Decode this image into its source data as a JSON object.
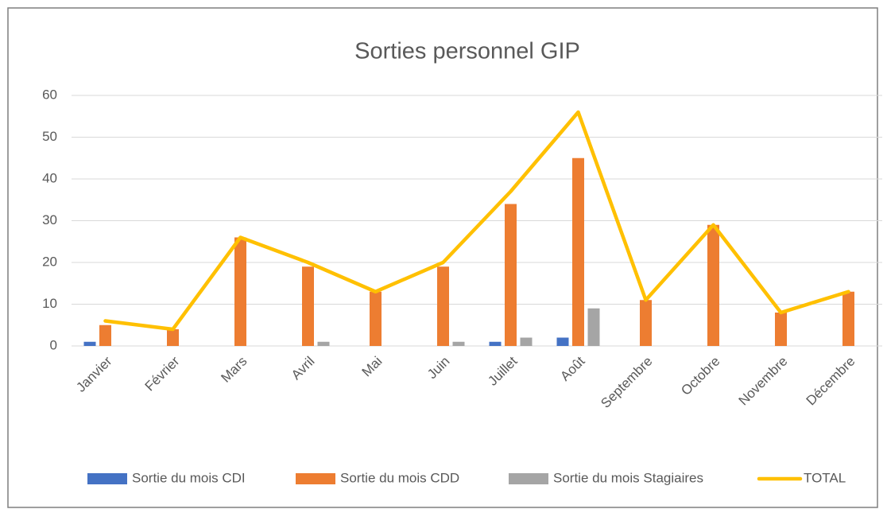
{
  "chart_data": {
    "type": "bar_line",
    "title": "Sorties personnel GIP",
    "categories": [
      "Janvier",
      "Février",
      "Mars",
      "Avril",
      "Mai",
      "Juin",
      "Juillet",
      "Août",
      "Septembre",
      "Octobre",
      "Novembre",
      "Décembre"
    ],
    "series": [
      {
        "name": "Sortie du mois CDI",
        "type": "bar",
        "color": "#4472c4",
        "values": [
          1,
          0,
          0,
          0,
          0,
          0,
          1,
          2,
          0,
          0,
          0,
          0
        ]
      },
      {
        "name": "Sortie du mois CDD",
        "type": "bar",
        "color": "#ed7d31",
        "values": [
          5,
          4,
          26,
          19,
          13,
          19,
          34,
          45,
          11,
          29,
          8,
          13
        ]
      },
      {
        "name": "Sortie du mois Stagiaires",
        "type": "bar",
        "color": "#a5a5a5",
        "values": [
          0,
          0,
          0,
          1,
          0,
          1,
          2,
          9,
          0,
          0,
          0,
          0
        ]
      },
      {
        "name": "TOTAL",
        "type": "line",
        "color": "#ffc000",
        "values": [
          6,
          4,
          26,
          20,
          13,
          20,
          37,
          56,
          11,
          29,
          8,
          13
        ]
      }
    ],
    "ylim": [
      0,
      60
    ],
    "yticks": [
      0,
      10,
      20,
      30,
      40,
      50,
      60
    ],
    "grid": true,
    "legend": "bottom"
  }
}
